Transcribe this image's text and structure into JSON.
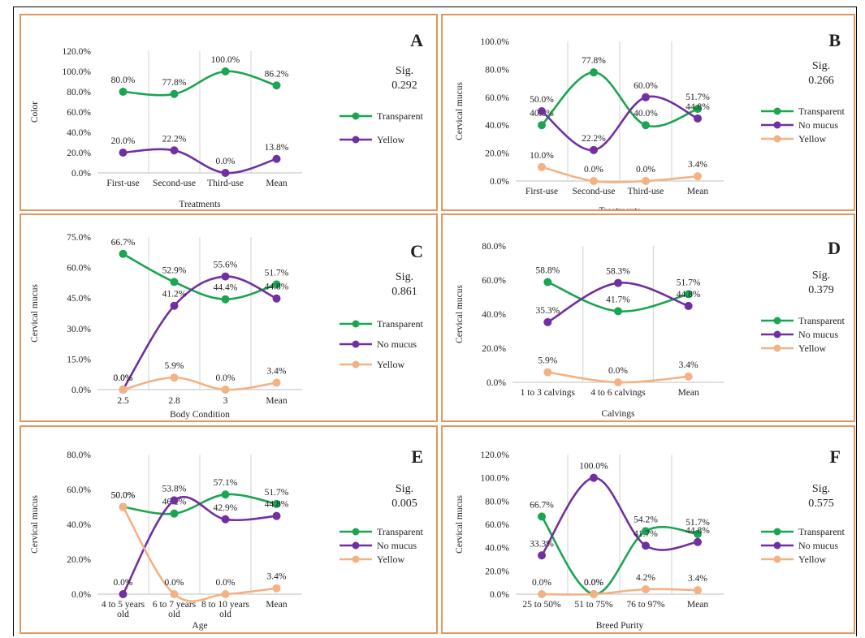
{
  "colors": {
    "transparent": "#1aa552",
    "no_mucus": "#7030a0",
    "yellow": "#f4b183",
    "border": "#e3955b",
    "grid": "#d0d0d0"
  },
  "chart_data": [
    {
      "id": "A",
      "type": "line",
      "letter": "A",
      "sig_label": "Sig.",
      "sig": "0.292",
      "categories": [
        "First-use",
        "Second-use",
        "Third-use",
        "Mean"
      ],
      "xlabel": "Treatments",
      "ylabel": "Color",
      "yticks": [
        "0.0%",
        "20.0%",
        "40.0%",
        "60.0%",
        "80.0%",
        "100.0%",
        "120.0%"
      ],
      "ylim": [
        0,
        120
      ],
      "series": [
        {
          "name": "Transparent",
          "color": "#1aa552",
          "values": [
            80,
            77.8,
            100,
            86.2
          ],
          "labels": [
            "80.0%",
            "77.8%",
            "100.0%",
            "86.2%"
          ]
        },
        {
          "name": "Yellow",
          "color": "#7030a0",
          "values": [
            20,
            22.2,
            0,
            13.8
          ],
          "labels": [
            "20.0%",
            "22.2%",
            "0.0%",
            "13.8%"
          ]
        }
      ]
    },
    {
      "id": "B",
      "type": "line",
      "letter": "B",
      "sig_label": "Sig.",
      "sig": "0.266",
      "categories": [
        "First-use",
        "Second-use",
        "Third-use",
        "Mean"
      ],
      "xlabel": "Treatments",
      "ylabel": "Cervical mucus",
      "yticks": [
        "0.0%",
        "20.0%",
        "40.0%",
        "60.0%",
        "80.0%",
        "100.0%"
      ],
      "ylim": [
        0,
        100
      ],
      "series": [
        {
          "name": "Transparent",
          "color": "#1aa552",
          "values": [
            40,
            77.8,
            40,
            51.7
          ],
          "labels": [
            "40.0%",
            "77.8%",
            "40.0%",
            "51.7%"
          ]
        },
        {
          "name": "No mucus",
          "color": "#7030a0",
          "values": [
            50,
            22.2,
            60,
            44.8
          ],
          "labels": [
            "50.0%",
            "22.2%",
            "60.0%",
            "44.8%"
          ]
        },
        {
          "name": "Yellow",
          "color": "#f4b183",
          "values": [
            10,
            0,
            0,
            3.4
          ],
          "labels": [
            "10.0%",
            "0.0%",
            "0.0%",
            "3.4%"
          ]
        }
      ]
    },
    {
      "id": "C",
      "type": "line",
      "letter": "C",
      "sig_label": "Sig.",
      "sig": "0.861",
      "categories": [
        "2.5",
        "2.8",
        "3",
        "Mean"
      ],
      "xlabel": "Body Condition",
      "ylabel": "Cervical mucus",
      "yticks": [
        "0.0%",
        "15.0%",
        "30.0%",
        "45.0%",
        "60.0%",
        "75.0%"
      ],
      "ylim": [
        0,
        75
      ],
      "series": [
        {
          "name": "Transparent",
          "color": "#1aa552",
          "values": [
            66.7,
            52.9,
            44.4,
            51.7
          ],
          "labels": [
            "66.7%",
            "52.9%",
            "44.4%",
            "51.7%"
          ]
        },
        {
          "name": "No mucus",
          "color": "#7030a0",
          "values": [
            0,
            41.2,
            55.6,
            44.8
          ],
          "labels": [
            "0.0%",
            "41.2%",
            "55.6%",
            "44.8%"
          ]
        },
        {
          "name": "Yellow",
          "color": "#f4b183",
          "values": [
            0,
            5.9,
            0,
            3.4
          ],
          "labels": [
            "0.0%",
            "5.9%",
            "0.0%",
            "3.4%"
          ]
        }
      ]
    },
    {
      "id": "D",
      "type": "line",
      "letter": "D",
      "sig_label": "Sig.",
      "sig": "0.379",
      "categories": [
        "1 to 3 calvings",
        "4 to 6 calvings",
        "Mean"
      ],
      "xlabel": "Calvings",
      "ylabel": "Cervical mucus",
      "yticks": [
        "0.0%",
        "20.0%",
        "40.0%",
        "60.0%",
        "80.0%"
      ],
      "ylim": [
        0,
        80
      ],
      "series": [
        {
          "name": "Transparent",
          "color": "#1aa552",
          "values": [
            58.8,
            41.7,
            51.7
          ],
          "labels": [
            "58.8%",
            "41.7%",
            "51.7%"
          ]
        },
        {
          "name": "No mucus",
          "color": "#7030a0",
          "values": [
            35.3,
            58.3,
            44.8
          ],
          "labels": [
            "35.3%",
            "58.3%",
            "44.8%"
          ]
        },
        {
          "name": "Yellow",
          "color": "#f4b183",
          "values": [
            5.9,
            0,
            3.4
          ],
          "labels": [
            "5.9%",
            "0.0%",
            "3.4%"
          ]
        }
      ]
    },
    {
      "id": "E",
      "type": "line",
      "letter": "E",
      "sig_label": "Sig.",
      "sig": "0.005",
      "categories": [
        "4 to 5 years old",
        "6 to 7 years old",
        "8 to 10 years old",
        "Mean"
      ],
      "xlabel": "Age",
      "ylabel": "Cervical mucus",
      "yticks": [
        "0.0%",
        "20.0%",
        "40.0%",
        "60.0%",
        "80.0%"
      ],
      "ylim": [
        0,
        80
      ],
      "series": [
        {
          "name": "Transparent",
          "color": "#1aa552",
          "values": [
            50,
            46.2,
            57.1,
            51.7
          ],
          "labels": [
            "50.0%",
            "46.2%",
            "57.1%",
            "51.7%"
          ]
        },
        {
          "name": "No mucus",
          "color": "#7030a0",
          "values": [
            0,
            53.8,
            42.9,
            44.8
          ],
          "labels": [
            "0.0%",
            "53.8%",
            "42.9%",
            "44.8%"
          ]
        },
        {
          "name": "Yellow",
          "color": "#f4b183",
          "values": [
            50,
            0,
            0,
            3.4
          ],
          "labels": [
            "50.0%",
            "0.0%",
            "0.0%",
            "3.4%"
          ]
        }
      ]
    },
    {
      "id": "F",
      "type": "line",
      "letter": "F",
      "sig_label": "Sig.",
      "sig": "0.575",
      "categories": [
        "25 to 50%",
        "51 to 75%",
        "76 to 97%",
        "Mean"
      ],
      "xlabel": "Breed Purity",
      "ylabel": "Cervical mucus",
      "yticks": [
        "0.0%",
        "20.0%",
        "40.0%",
        "60.0%",
        "80.0%",
        "100.0%",
        "120.0%"
      ],
      "ylim": [
        0,
        120
      ],
      "series": [
        {
          "name": "Transparent",
          "color": "#1aa552",
          "values": [
            66.7,
            0,
            54.2,
            51.7
          ],
          "labels": [
            "66.7%",
            "0.0%",
            "54.2%",
            "51.7%"
          ]
        },
        {
          "name": "No mucus",
          "color": "#7030a0",
          "values": [
            33.3,
            100,
            41.7,
            44.8
          ],
          "labels": [
            "33.3%",
            "100.0%",
            "41.7%",
            "44.8%"
          ]
        },
        {
          "name": "Yellow",
          "color": "#f4b183",
          "values": [
            0,
            0,
            4.2,
            3.4
          ],
          "labels": [
            "0.0%",
            "0.0%",
            "4.2%",
            "3.4%"
          ]
        }
      ]
    }
  ]
}
